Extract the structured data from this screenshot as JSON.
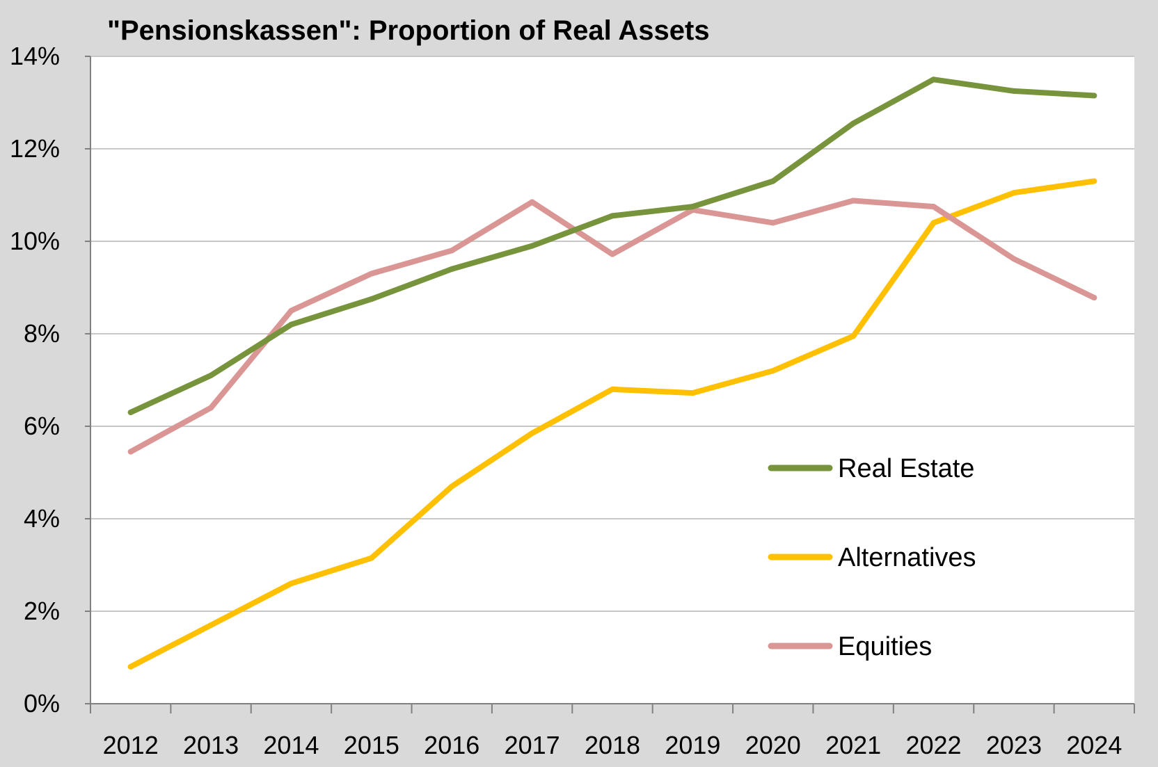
{
  "chart_data": {
    "type": "line",
    "title": "\"Pensionskassen\": Proportion of Real Assets",
    "xlabel": "",
    "ylabel": "",
    "categories": [
      "2012",
      "2013",
      "2014",
      "2015",
      "2016",
      "2017",
      "2018",
      "2019",
      "2020",
      "2021",
      "2022",
      "2023",
      "2024"
    ],
    "ylim": [
      0,
      14
    ],
    "yticks": [
      0,
      2,
      4,
      6,
      8,
      10,
      12,
      14
    ],
    "ytick_labels": [
      "0%",
      "2%",
      "4%",
      "6%",
      "8%",
      "10%",
      "12%",
      "14%"
    ],
    "grid": true,
    "legend_position": "right-center",
    "series": [
      {
        "name": "Real Estate",
        "color": "#77933c",
        "values": [
          6.3,
          7.1,
          8.2,
          8.75,
          9.4,
          9.9,
          10.55,
          10.75,
          11.3,
          12.55,
          13.5,
          13.25,
          13.15
        ]
      },
      {
        "name": "Alternatives",
        "color": "#ffc000",
        "values": [
          0.8,
          1.7,
          2.6,
          3.15,
          4.7,
          5.85,
          6.8,
          6.72,
          7.2,
          7.95,
          10.4,
          11.05,
          11.3
        ]
      },
      {
        "name": "Equities",
        "color": "#d99694",
        "values": [
          5.45,
          6.4,
          8.5,
          9.3,
          9.8,
          10.85,
          9.72,
          10.68,
          10.4,
          10.88,
          10.75,
          9.62,
          8.78
        ]
      }
    ]
  }
}
